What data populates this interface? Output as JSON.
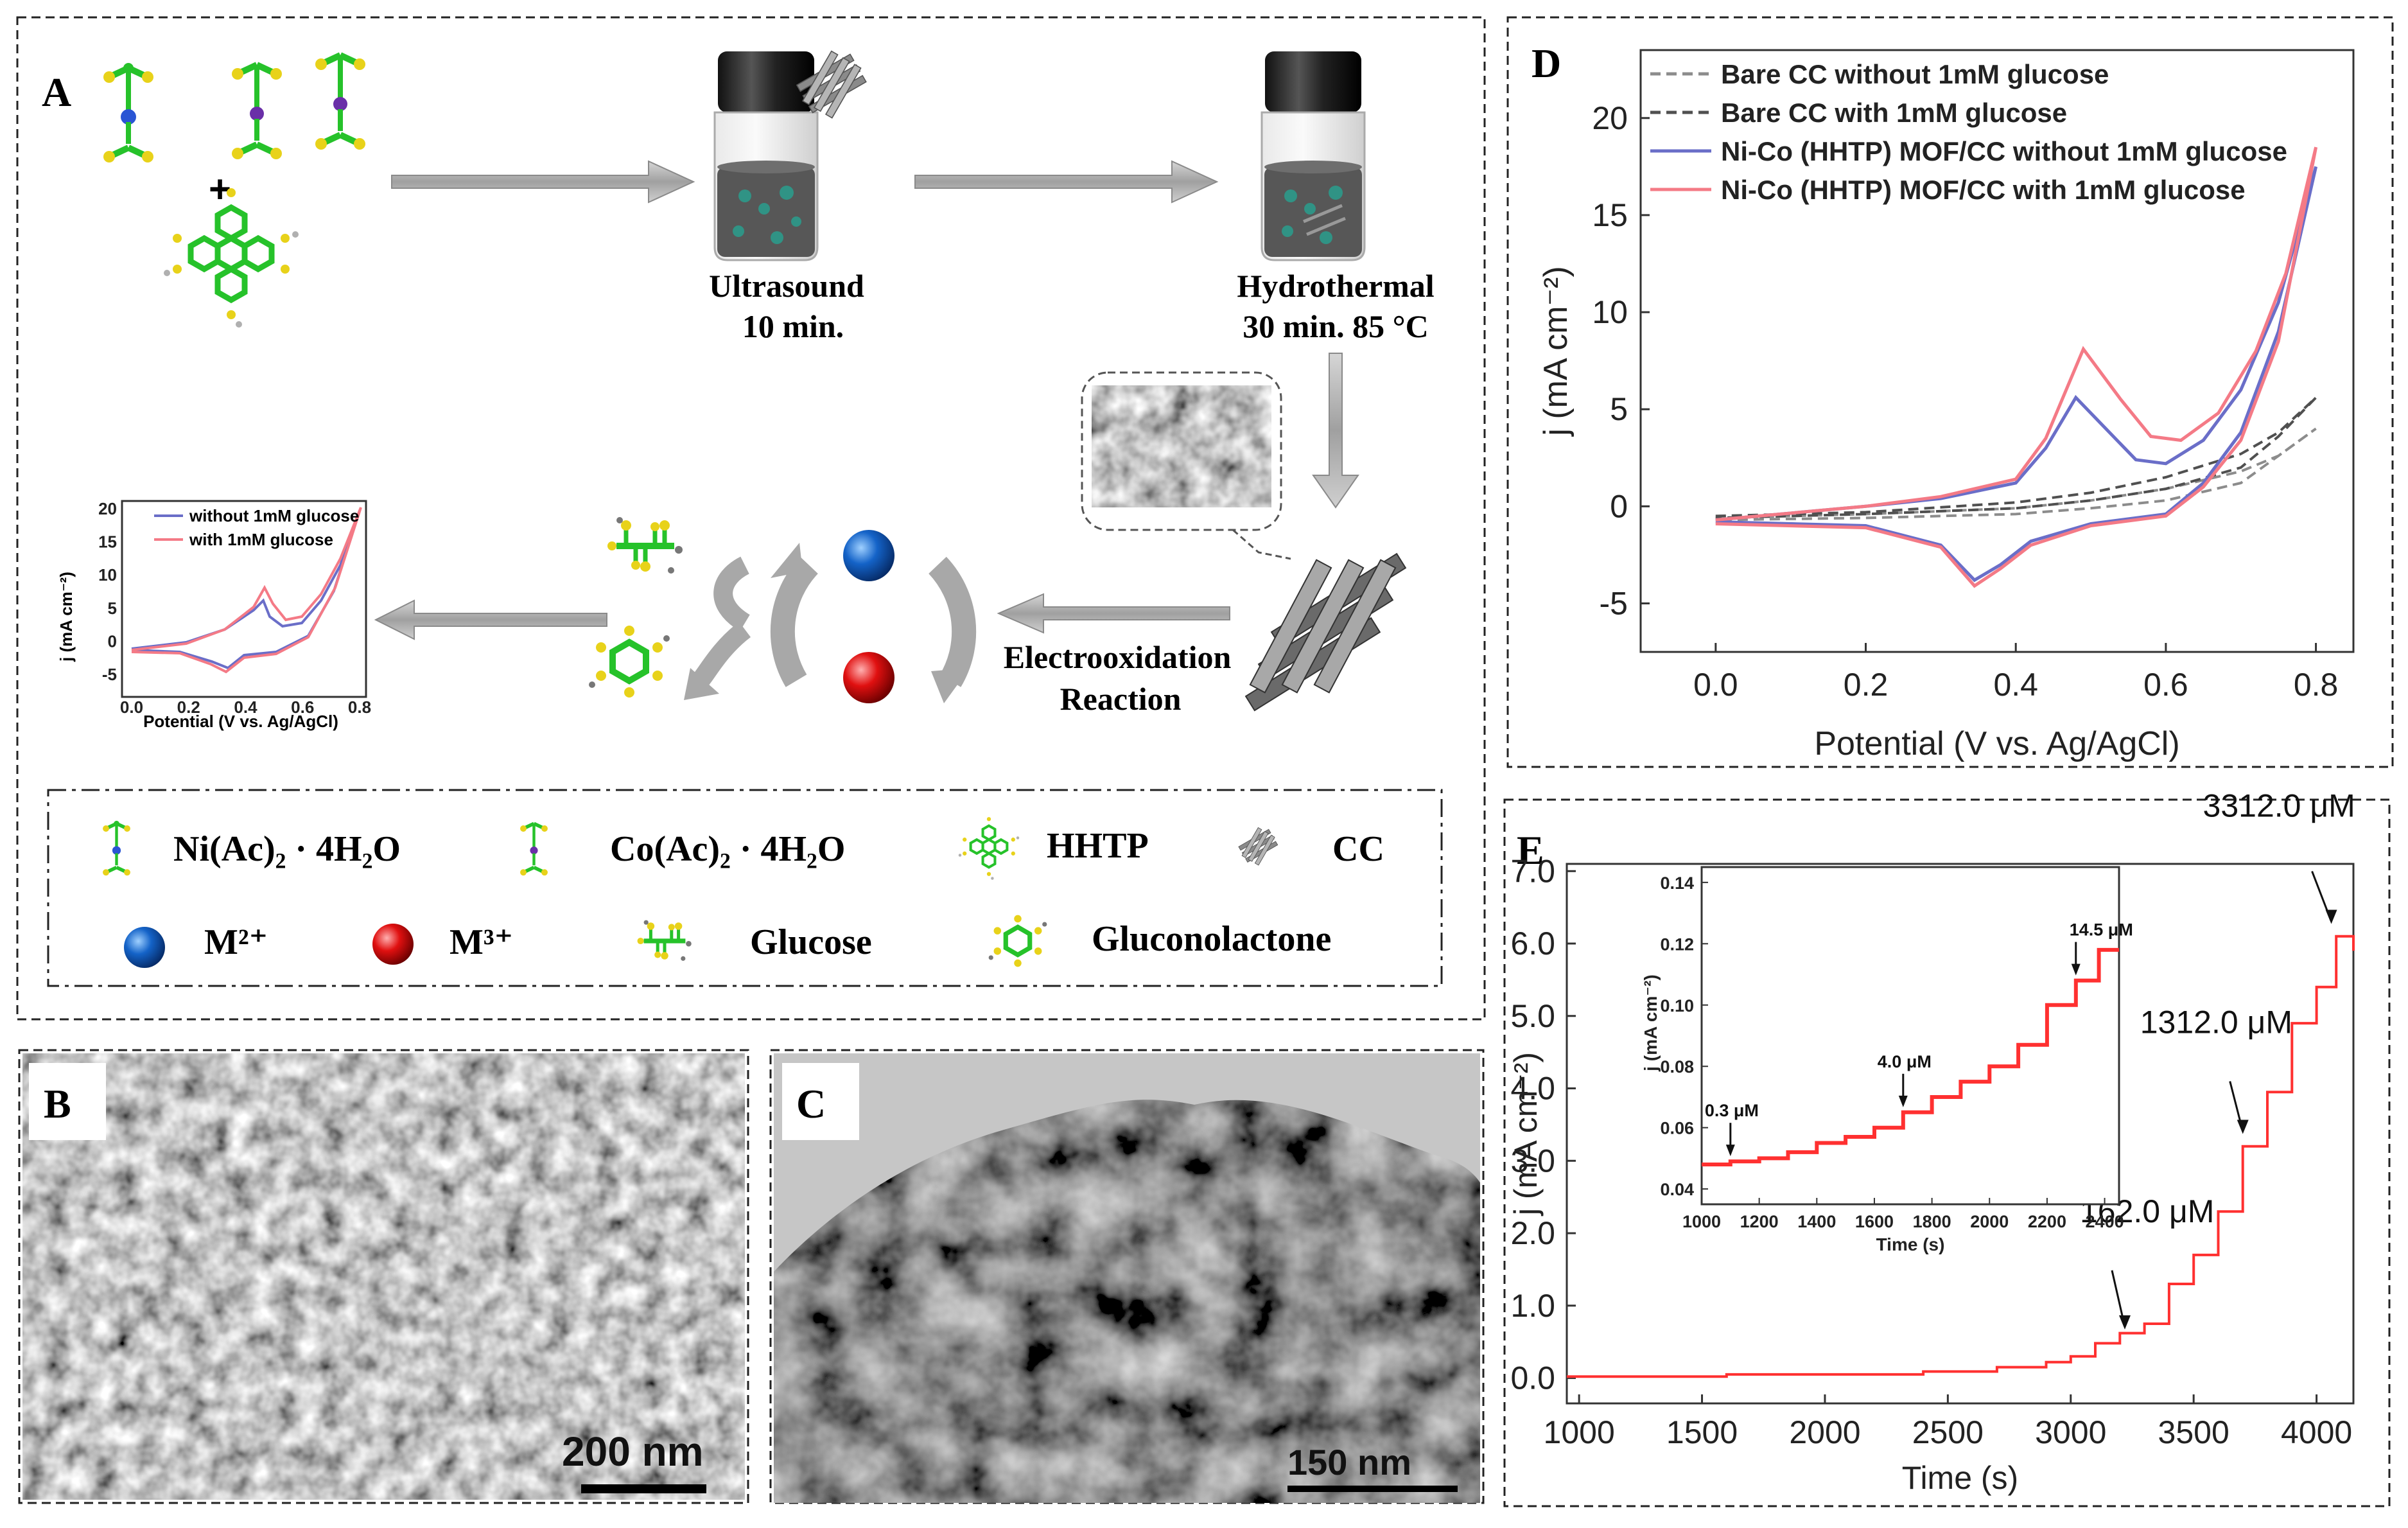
{
  "panels": {
    "a": {
      "label": "A",
      "step1": [
        "Ultrasound",
        "10 min."
      ],
      "step2": [
        "Hydrothermal",
        "30 min.   85 °C"
      ],
      "step3": [
        "Electrooxidation",
        "Reaction"
      ],
      "plus": "+",
      "mini_legend": [
        "without 1mM glucose",
        "with 1mM glucose"
      ],
      "mini_ylabel": "j (mA cm⁻²)",
      "mini_xlabel": "Potential (V vs. Ag/AgCl)",
      "mini_xticks": [
        "0.0",
        "0.2",
        "0.4",
        "0.6",
        "0.8"
      ],
      "mini_yticks": [
        "20",
        "15",
        "10",
        "5",
        "0",
        "-5"
      ],
      "key": {
        "ni": "Ni(Ac)₂ · 4H₂O",
        "co": "Co(Ac)₂ · 4H₂O",
        "hhtp": "HHTP",
        "cc": "CC",
        "m2": "M²⁺",
        "m3": "M³⁺",
        "glucose": "Glucose",
        "gluconolactone": "Gluconolactone"
      }
    },
    "b": {
      "label": "B",
      "scale": "200 nm"
    },
    "c": {
      "label": "C",
      "scale": "150 nm"
    },
    "d": {
      "label": "D"
    },
    "e": {
      "label": "E"
    }
  },
  "colors": {
    "ni": "#2a55d4",
    "co": "#6a2fa8",
    "carbon": "#26c22a",
    "oxygen": "#e8d21a",
    "m2": "#1463c8",
    "m3": "#e01010",
    "series_red": "#ff3030",
    "cv_blue": "#6a6ec8",
    "cv_pink": "#f47a86",
    "cv_dark": "#c23a5a",
    "arrow": "#a8a8a8"
  },
  "chart_data": [
    {
      "id": "cv",
      "type": "line",
      "xlabel": "Potential (V vs. Ag/AgCl)",
      "ylabel": "j (mA cm⁻²)",
      "xlim": [
        -0.1,
        0.85
      ],
      "ylim": [
        -7.5,
        23.5
      ],
      "xticks": [
        0.0,
        0.2,
        0.4,
        0.6,
        0.8
      ],
      "xtick_labels": [
        "0.0",
        "0.2",
        "0.4",
        "0.6",
        "0.8"
      ],
      "yticks": [
        -5,
        0,
        5,
        10,
        15,
        20
      ],
      "ytick_labels": [
        "-5",
        "0",
        "5",
        "10",
        "15",
        "20"
      ],
      "legend_position": "top-left",
      "series": [
        {
          "name": "Bare CC without 1mM glucose",
          "style": "dashed",
          "color": "#8c8c8c",
          "anodic": [
            [
              0.0,
              -0.6
            ],
            [
              0.2,
              -0.4
            ],
            [
              0.4,
              -0.1
            ],
            [
              0.5,
              0.3
            ],
            [
              0.6,
              0.9
            ],
            [
              0.7,
              1.8
            ],
            [
              0.75,
              2.6
            ],
            [
              0.8,
              4.0
            ]
          ],
          "cathodic": [
            [
              0.8,
              4.0
            ],
            [
              0.75,
              2.6
            ],
            [
              0.7,
              1.2
            ],
            [
              0.6,
              0.3
            ],
            [
              0.5,
              -0.1
            ],
            [
              0.4,
              -0.4
            ],
            [
              0.2,
              -0.6
            ],
            [
              0.0,
              -0.7
            ]
          ]
        },
        {
          "name": "Bare CC with 1mM glucose",
          "style": "dashed",
          "color": "#505050",
          "anodic": [
            [
              0.0,
              -0.5
            ],
            [
              0.2,
              -0.3
            ],
            [
              0.4,
              0.2
            ],
            [
              0.5,
              0.7
            ],
            [
              0.6,
              1.5
            ],
            [
              0.7,
              2.7
            ],
            [
              0.75,
              3.8
            ],
            [
              0.8,
              5.6
            ]
          ],
          "cathodic": [
            [
              0.8,
              5.6
            ],
            [
              0.75,
              3.6
            ],
            [
              0.7,
              2.0
            ],
            [
              0.6,
              0.9
            ],
            [
              0.5,
              0.3
            ],
            [
              0.4,
              -0.1
            ],
            [
              0.2,
              -0.4
            ],
            [
              0.0,
              -0.6
            ]
          ]
        },
        {
          "name": "Ni-Co (HHTP) MOF/CC without 1mM glucose",
          "style": "solid",
          "color": "#6a6ec8",
          "anodic": [
            [
              0.0,
              -0.7
            ],
            [
              0.2,
              0.0
            ],
            [
              0.3,
              0.4
            ],
            [
              0.4,
              1.2
            ],
            [
              0.44,
              3.0
            ],
            [
              0.48,
              5.6
            ],
            [
              0.52,
              4.0
            ],
            [
              0.56,
              2.4
            ],
            [
              0.6,
              2.2
            ],
            [
              0.65,
              3.4
            ],
            [
              0.7,
              6.0
            ],
            [
              0.75,
              10.5
            ],
            [
              0.8,
              17.5
            ]
          ],
          "cathodic": [
            [
              0.8,
              17.5
            ],
            [
              0.75,
              9.0
            ],
            [
              0.7,
              3.8
            ],
            [
              0.65,
              1.2
            ],
            [
              0.6,
              -0.4
            ],
            [
              0.5,
              -0.9
            ],
            [
              0.42,
              -1.8
            ],
            [
              0.38,
              -3.0
            ],
            [
              0.345,
              -3.8
            ],
            [
              0.3,
              -2.0
            ],
            [
              0.2,
              -1.0
            ],
            [
              0.0,
              -0.8
            ]
          ]
        },
        {
          "name": "Ni-Co (HHTP) MOF/CC with 1mM glucose",
          "style": "solid",
          "color": "#f47a86",
          "anodic": [
            [
              0.0,
              -0.7
            ],
            [
              0.2,
              0.0
            ],
            [
              0.3,
              0.5
            ],
            [
              0.4,
              1.4
            ],
            [
              0.44,
              3.5
            ],
            [
              0.49,
              8.1
            ],
            [
              0.54,
              5.5
            ],
            [
              0.58,
              3.6
            ],
            [
              0.62,
              3.4
            ],
            [
              0.67,
              4.8
            ],
            [
              0.72,
              8.0
            ],
            [
              0.76,
              12.0
            ],
            [
              0.8,
              18.5
            ]
          ],
          "cathodic": [
            [
              0.8,
              18.5
            ],
            [
              0.75,
              8.5
            ],
            [
              0.7,
              3.4
            ],
            [
              0.65,
              1.0
            ],
            [
              0.6,
              -0.5
            ],
            [
              0.5,
              -1.0
            ],
            [
              0.42,
              -2.0
            ],
            [
              0.38,
              -3.2
            ],
            [
              0.345,
              -4.1
            ],
            [
              0.3,
              -2.1
            ],
            [
              0.2,
              -1.1
            ],
            [
              0.0,
              -0.9
            ]
          ]
        }
      ]
    },
    {
      "id": "amperometry",
      "type": "line",
      "xlabel": "Time (s)",
      "ylabel": "j (mA cm⁻²)",
      "xlim": [
        950,
        4150
      ],
      "ylim": [
        -0.35,
        7.1
      ],
      "xticks": [
        1000,
        1500,
        2000,
        2500,
        3000,
        3500,
        4000
      ],
      "xtick_labels": [
        "1000",
        "1500",
        "2000",
        "2500",
        "3000",
        "3500",
        "4000"
      ],
      "yticks": [
        0,
        1,
        2,
        3,
        4,
        5,
        6,
        7
      ],
      "ytick_labels": [
        "0.0",
        "1.0",
        "2.0",
        "3.0",
        "4.0",
        "5.0",
        "6.0",
        "7.0"
      ],
      "steps": [
        [
          950,
          0.02
        ],
        [
          1600,
          0.05
        ],
        [
          2400,
          0.09
        ],
        [
          2700,
          0.15
        ],
        [
          2900,
          0.22
        ],
        [
          3000,
          0.3
        ],
        [
          3100,
          0.48
        ],
        [
          3200,
          0.62
        ],
        [
          3300,
          0.75
        ],
        [
          3400,
          1.3
        ],
        [
          3500,
          1.7
        ],
        [
          3600,
          2.3
        ],
        [
          3700,
          3.2
        ],
        [
          3800,
          3.95
        ],
        [
          3900,
          4.9
        ],
        [
          4000,
          5.4
        ],
        [
          4080,
          6.1
        ],
        [
          4150,
          5.9
        ]
      ],
      "annotations": [
        {
          "text": "162.0 μM",
          "x": 3220,
          "y": 0.6
        },
        {
          "text": "1312.0 μM",
          "x": 3700,
          "y": 3.3
        },
        {
          "text": "3312.0 μM",
          "x": 4060,
          "y": 6.2
        }
      ]
    },
    {
      "id": "amperometry_inset",
      "type": "line",
      "xlabel": "Time (s)",
      "ylabel": "j (mA cm⁻²)",
      "xlim": [
        1000,
        2450
      ],
      "ylim": [
        0.035,
        0.145
      ],
      "xticks": [
        1000,
        1200,
        1400,
        1600,
        1800,
        2000,
        2200,
        2400
      ],
      "xtick_labels": [
        "1000",
        "1200",
        "1400",
        "1600",
        "1800",
        "2000",
        "2200",
        "2400"
      ],
      "yticks": [
        0.04,
        0.06,
        0.08,
        0.1,
        0.12,
        0.14
      ],
      "ytick_labels": [
        "0.04",
        "0.06",
        "0.08",
        "0.10",
        "0.12",
        "0.14"
      ],
      "steps": [
        [
          1000,
          0.048
        ],
        [
          1100,
          0.049
        ],
        [
          1200,
          0.05
        ],
        [
          1300,
          0.052
        ],
        [
          1400,
          0.055
        ],
        [
          1500,
          0.057
        ],
        [
          1600,
          0.06
        ],
        [
          1700,
          0.065
        ],
        [
          1800,
          0.07
        ],
        [
          1900,
          0.075
        ],
        [
          2000,
          0.08
        ],
        [
          2100,
          0.087
        ],
        [
          2200,
          0.1
        ],
        [
          2300,
          0.108
        ],
        [
          2380,
          0.118
        ],
        [
          2450,
          0.118
        ]
      ],
      "annotations": [
        {
          "text": "0.3 μM",
          "x": 1100,
          "y": 0.049
        },
        {
          "text": "4.0 μM",
          "x": 1700,
          "y": 0.065
        },
        {
          "text": "14.5 μM",
          "x": 2300,
          "y": 0.108
        }
      ]
    }
  ]
}
